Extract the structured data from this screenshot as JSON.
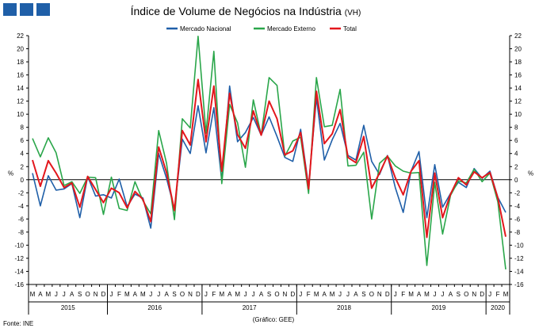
{
  "header": {
    "title": "Índice de Volume de Negócios na Indústria",
    "title_suffix": "(VH)",
    "logo_color": "#1f5fa8"
  },
  "footer": {
    "source": "Fonte: INE",
    "credit": "(Gráfico: GEE)"
  },
  "chart_data": {
    "type": "line",
    "ylabel_left": "%",
    "ylabel_right": "%",
    "ylim": [
      -16,
      22
    ],
    "yticks": [
      22,
      20,
      18,
      16,
      14,
      12,
      10,
      8,
      6,
      4,
      2,
      0,
      -2,
      -4,
      -6,
      -8,
      -10,
      -12,
      -14,
      -16
    ],
    "grid": false,
    "legend_position": "top-center",
    "x": [
      "M",
      "A",
      "M",
      "J",
      "J",
      "A",
      "S",
      "O",
      "N",
      "D",
      "J",
      "F",
      "M",
      "A",
      "M",
      "J",
      "J",
      "A",
      "S",
      "O",
      "N",
      "D",
      "J",
      "F",
      "M",
      "A",
      "M",
      "J",
      "J",
      "A",
      "S",
      "O",
      "N",
      "D",
      "J",
      "F",
      "M",
      "A",
      "M",
      "J",
      "J",
      "A",
      "S",
      "O",
      "N",
      "D",
      "J",
      "F",
      "M",
      "A",
      "M",
      "J",
      "J",
      "A",
      "S",
      "O",
      "N",
      "D",
      "J",
      "F",
      "M"
    ],
    "years": [
      {
        "label": "2015",
        "start": 0,
        "end": 9
      },
      {
        "label": "2016",
        "start": 10,
        "end": 21
      },
      {
        "label": "2017",
        "start": 22,
        "end": 33
      },
      {
        "label": "2018",
        "start": 34,
        "end": 45
      },
      {
        "label": "2019",
        "start": 46,
        "end": 57
      },
      {
        "label": "2020",
        "start": 58,
        "end": 60
      }
    ],
    "series": [
      {
        "name": "Mercado Nacional",
        "color": "#1f5fa8",
        "values": [
          1.0,
          -4.0,
          0.6,
          -1.6,
          -1.4,
          -0.6,
          -5.8,
          0.5,
          -2.5,
          -2.3,
          -2.8,
          0.1,
          -4.1,
          -2.2,
          -2.8,
          -7.4,
          4.0,
          0.2,
          -4.5,
          6.2,
          4.0,
          11.3,
          4.1,
          11.0,
          -0.2,
          14.3,
          5.8,
          7.2,
          9.5,
          6.8,
          9.6,
          6.6,
          3.4,
          2.8,
          7.7,
          -1.0,
          12.5,
          3.0,
          6.1,
          8.6,
          3.7,
          3.0,
          8.3,
          2.8,
          0.8,
          3.7,
          -1.2,
          -5.0,
          1.3,
          4.3,
          -5.8,
          2.3,
          -4.2,
          -2.1,
          -0.4,
          -1.2,
          1.7,
          0.2,
          1.3,
          -2.7,
          -5.0
        ]
      },
      {
        "name": "Mercado Externo",
        "color": "#2aa64a",
        "values": [
          6.3,
          3.5,
          6.4,
          4.1,
          -0.9,
          -0.3,
          -2.1,
          0.4,
          0.3,
          -5.3,
          0.4,
          -4.4,
          -4.7,
          -0.3,
          -3.2,
          -5.2,
          7.5,
          2.5,
          -6.1,
          9.3,
          7.9,
          21.9,
          7.1,
          19.6,
          -0.6,
          11.5,
          8.7,
          1.9,
          12.2,
          6.8,
          15.6,
          14.4,
          3.6,
          5.9,
          6.5,
          -2.1,
          15.6,
          8.1,
          8.3,
          13.8,
          2.1,
          2.2,
          4.2,
          -6.0,
          2.5,
          3.6,
          2.1,
          1.3,
          1.0,
          1.1,
          -13.1,
          -0.4,
          -8.3,
          -2.4,
          -0.2,
          -0.5,
          1.6,
          -0.3,
          1.0,
          -3.4,
          -13.7
        ]
      },
      {
        "name": "Total",
        "color": "#e3161c",
        "values": [
          3.0,
          -1.0,
          2.9,
          1.0,
          -1.2,
          -0.5,
          -4.2,
          0.5,
          -1.5,
          -3.5,
          -1.3,
          -2.0,
          -4.3,
          -1.8,
          -3.0,
          -6.4,
          5.0,
          1.1,
          -4.7,
          7.5,
          5.3,
          15.3,
          5.8,
          14.3,
          1.3,
          13.2,
          6.9,
          4.8,
          10.5,
          6.8,
          12.0,
          9.3,
          3.8,
          4.4,
          7.2,
          -1.4,
          13.5,
          5.5,
          7.0,
          10.7,
          3.4,
          2.6,
          6.6,
          -1.3,
          1.0,
          3.6,
          0.3,
          -2.3,
          1.3,
          2.9,
          -8.8,
          1.0,
          -5.8,
          -2.2,
          0.3,
          -0.8,
          1.2,
          0.3,
          1.1,
          -2.8,
          -8.7
        ]
      }
    ]
  }
}
